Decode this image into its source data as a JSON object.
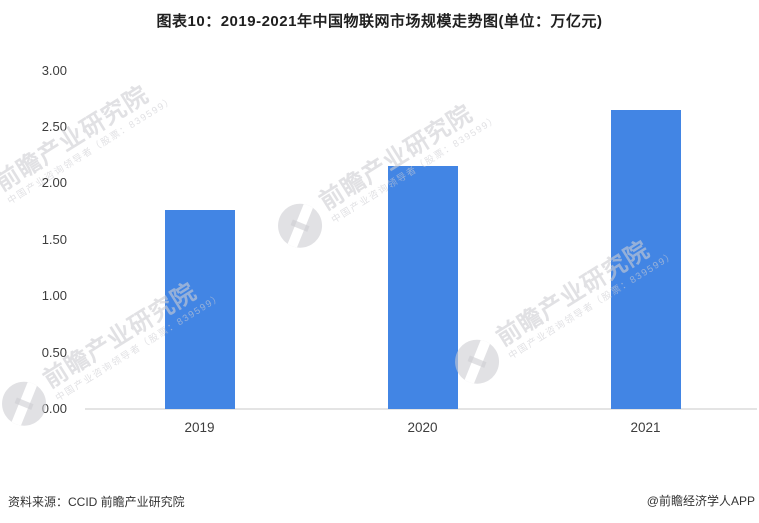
{
  "title": "图表10：2019-2021年中国物联网市场规模走势图(单位：万亿元)",
  "chart_data": {
    "type": "bar",
    "title": "图表10：2019-2021年中国物联网市场规模走势图(单位：万亿元)",
    "unit": "万亿元",
    "categories": [
      "2019",
      "2020",
      "2021"
    ],
    "values": [
      1.76,
      2.15,
      2.65
    ],
    "xlabel": "",
    "ylabel": "",
    "ylim": [
      0,
      3.0
    ],
    "ytick_step": 0.5,
    "ytick_labels": [
      "0.00",
      "0.50",
      "1.00",
      "1.50",
      "2.00",
      "2.50",
      "3.00"
    ],
    "grid": false,
    "legend": null,
    "bar_color": "#4285e4"
  },
  "footer": {
    "source": "资料来源：CCID 前瞻产业研究院",
    "credit": "@前瞻经济学人APP"
  },
  "watermark": {
    "main": "前瞻产业研究院",
    "sub": "中国产业咨询领导者（股票：839599）",
    "color_rgba": "rgba(205,205,210,0.6)"
  }
}
